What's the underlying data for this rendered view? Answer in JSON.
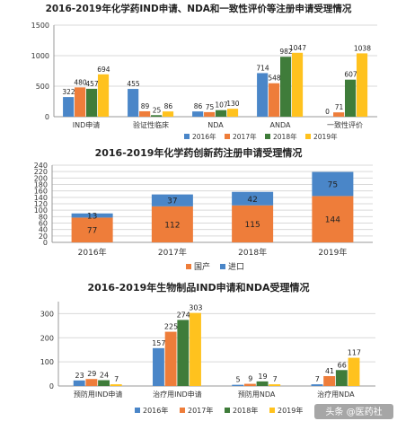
{
  "colors": {
    "y2016": "#4a86c8",
    "y2017": "#ee7d3a",
    "y2018": "#3f7c3a",
    "y2019": "#ffc21e",
    "domestic": "#ee7d3a",
    "imported": "#4a86c8",
    "grid": "#d9d9d9",
    "axis": "#999999"
  },
  "watermark": "头条 @医药社",
  "chart_data": [
    {
      "type": "bar",
      "title": "2016-2019年化学药IND申请、NDA和一致性评价等注册申请受理情况",
      "categories": [
        "IND申请",
        "验证性临床",
        "NDA",
        "ANDA",
        "一致性评价"
      ],
      "ylim": [
        0,
        1500
      ],
      "yticks": [
        0,
        500,
        1000,
        1500
      ],
      "grid": true,
      "legend": "bottom-right",
      "series": [
        {
          "name": "2016年",
          "color": "#4a86c8",
          "values": [
            322,
            455,
            86,
            714,
            0
          ]
        },
        {
          "name": "2017年",
          "color": "#ee7d3a",
          "values": [
            480,
            89,
            75,
            548,
            71
          ]
        },
        {
          "name": "2018年",
          "color": "#3f7c3a",
          "values": [
            457,
            25,
            107,
            982,
            607
          ]
        },
        {
          "name": "2019年",
          "color": "#ffc21e",
          "values": [
            694,
            86,
            130,
            1047,
            1038
          ]
        }
      ]
    },
    {
      "type": "stacked-bar",
      "title": "2016-2019年化学药创新药注册申请受理情况",
      "categories": [
        "2016年",
        "2017年",
        "2018年",
        "2019年"
      ],
      "ylim": [
        0,
        240
      ],
      "yticks": [
        0,
        20,
        40,
        60,
        80,
        100,
        120,
        140,
        160,
        180,
        200,
        220,
        240
      ],
      "grid": true,
      "legend": "bottom-center",
      "series": [
        {
          "name": "国产",
          "color": "#ee7d3a",
          "values": [
            77,
            112,
            115,
            144
          ]
        },
        {
          "name": "进口",
          "color": "#4a86c8",
          "values": [
            13,
            37,
            42,
            75
          ]
        }
      ]
    },
    {
      "type": "bar",
      "title": "2016-2019年生物制品IND申请和NDA受理情况",
      "categories": [
        "预防用IND申请",
        "治疗用IND申请",
        "预防用NDA",
        "治疗用NDA"
      ],
      "ylim": [
        0,
        350
      ],
      "yticks": [
        0,
        100,
        200,
        300
      ],
      "grid": true,
      "legend": "bottom-center",
      "series": [
        {
          "name": "2016年",
          "color": "#4a86c8",
          "values": [
            23,
            157,
            5,
            7
          ]
        },
        {
          "name": "2017年",
          "color": "#ee7d3a",
          "values": [
            29,
            225,
            9,
            41
          ]
        },
        {
          "name": "2018年",
          "color": "#3f7c3a",
          "values": [
            24,
            274,
            19,
            66
          ]
        },
        {
          "name": "2019年",
          "color": "#ffc21e",
          "values": [
            7,
            303,
            7,
            117
          ]
        }
      ]
    }
  ]
}
